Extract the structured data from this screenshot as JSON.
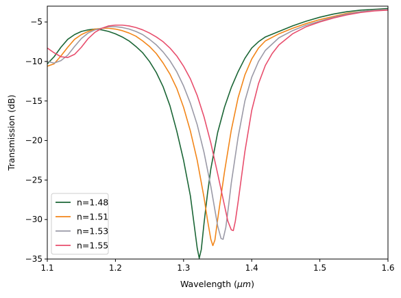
{
  "chart_data": {
    "type": "line",
    "title": "",
    "xlabel": "Wavelength (μm)",
    "xlabel_parts": {
      "prefix": "Wavelength (",
      "unit": "μm",
      "suffix": ")"
    },
    "ylabel": "Transmission (dB)",
    "xlim": [
      1.1,
      1.6
    ],
    "ylim": [
      -35,
      -3
    ],
    "xticks": [
      1.1,
      1.2,
      1.3,
      1.4,
      1.5,
      1.6
    ],
    "xtick_labels": [
      "1.1",
      "1.2",
      "1.3",
      "1.4",
      "1.5",
      "1.6"
    ],
    "yticks": [
      -35,
      -30,
      -25,
      -20,
      -15,
      -10,
      -5
    ],
    "ytick_labels": [
      "−35",
      "−30",
      "−25",
      "−20",
      "−15",
      "−10",
      "−5"
    ],
    "grid": false,
    "legend_position": "lower-left",
    "series": [
      {
        "name": "n=1.48",
        "color": "#1a6535",
        "points": [
          [
            1.1,
            -10.3
          ],
          [
            1.11,
            -9.4
          ],
          [
            1.12,
            -8.2
          ],
          [
            1.13,
            -7.2
          ],
          [
            1.14,
            -6.6
          ],
          [
            1.15,
            -6.2
          ],
          [
            1.16,
            -6.0
          ],
          [
            1.17,
            -5.9
          ],
          [
            1.18,
            -6.0
          ],
          [
            1.19,
            -6.2
          ],
          [
            1.2,
            -6.5
          ],
          [
            1.21,
            -6.9
          ],
          [
            1.22,
            -7.4
          ],
          [
            1.23,
            -8.1
          ],
          [
            1.24,
            -8.9
          ],
          [
            1.25,
            -10.0
          ],
          [
            1.26,
            -11.4
          ],
          [
            1.27,
            -13.2
          ],
          [
            1.28,
            -15.6
          ],
          [
            1.29,
            -18.8
          ],
          [
            1.3,
            -22.5
          ],
          [
            1.31,
            -27.0
          ],
          [
            1.315,
            -30.3
          ],
          [
            1.32,
            -33.6
          ],
          [
            1.323,
            -34.9
          ],
          [
            1.326,
            -33.8
          ],
          [
            1.33,
            -30.5
          ],
          [
            1.335,
            -26.8
          ],
          [
            1.34,
            -23.6
          ],
          [
            1.35,
            -19.0
          ],
          [
            1.36,
            -15.8
          ],
          [
            1.37,
            -13.3
          ],
          [
            1.38,
            -11.3
          ],
          [
            1.39,
            -9.6
          ],
          [
            1.4,
            -8.3
          ],
          [
            1.41,
            -7.5
          ],
          [
            1.42,
            -6.9
          ],
          [
            1.44,
            -6.2
          ],
          [
            1.46,
            -5.5
          ],
          [
            1.48,
            -4.9
          ],
          [
            1.5,
            -4.4
          ],
          [
            1.52,
            -4.0
          ],
          [
            1.54,
            -3.7
          ],
          [
            1.56,
            -3.5
          ],
          [
            1.58,
            -3.4
          ],
          [
            1.6,
            -3.3
          ]
        ]
      },
      {
        "name": "n=1.51",
        "color": "#f28518",
        "points": [
          [
            1.1,
            -10.6
          ],
          [
            1.11,
            -10.3
          ],
          [
            1.12,
            -9.3
          ],
          [
            1.13,
            -8.2
          ],
          [
            1.14,
            -7.2
          ],
          [
            1.15,
            -6.6
          ],
          [
            1.16,
            -6.2
          ],
          [
            1.17,
            -5.9
          ],
          [
            1.18,
            -5.8
          ],
          [
            1.19,
            -5.8
          ],
          [
            1.2,
            -5.9
          ],
          [
            1.21,
            -6.1
          ],
          [
            1.22,
            -6.4
          ],
          [
            1.23,
            -6.8
          ],
          [
            1.24,
            -7.4
          ],
          [
            1.25,
            -8.1
          ],
          [
            1.26,
            -9.0
          ],
          [
            1.27,
            -10.2
          ],
          [
            1.28,
            -11.6
          ],
          [
            1.29,
            -13.4
          ],
          [
            1.3,
            -15.8
          ],
          [
            1.31,
            -18.8
          ],
          [
            1.32,
            -22.5
          ],
          [
            1.33,
            -27.2
          ],
          [
            1.335,
            -30.0
          ],
          [
            1.34,
            -32.5
          ],
          [
            1.343,
            -33.3
          ],
          [
            1.346,
            -32.6
          ],
          [
            1.35,
            -30.0
          ],
          [
            1.355,
            -27.0
          ],
          [
            1.36,
            -24.0
          ],
          [
            1.37,
            -18.7
          ],
          [
            1.38,
            -14.6
          ],
          [
            1.39,
            -11.7
          ],
          [
            1.4,
            -9.7
          ],
          [
            1.41,
            -8.3
          ],
          [
            1.42,
            -7.4
          ],
          [
            1.44,
            -6.5
          ],
          [
            1.46,
            -5.8
          ],
          [
            1.48,
            -5.2
          ],
          [
            1.5,
            -4.7
          ],
          [
            1.52,
            -4.3
          ],
          [
            1.54,
            -3.9
          ],
          [
            1.56,
            -3.7
          ],
          [
            1.58,
            -3.5
          ],
          [
            1.6,
            -3.4
          ]
        ]
      },
      {
        "name": "n=1.53",
        "color": "#9a99a6",
        "points": [
          [
            1.1,
            -10.0
          ],
          [
            1.11,
            -10.2
          ],
          [
            1.12,
            -9.9
          ],
          [
            1.13,
            -9.2
          ],
          [
            1.14,
            -8.1
          ],
          [
            1.15,
            -7.1
          ],
          [
            1.16,
            -6.4
          ],
          [
            1.17,
            -6.0
          ],
          [
            1.18,
            -5.8
          ],
          [
            1.19,
            -5.6
          ],
          [
            1.2,
            -5.6
          ],
          [
            1.21,
            -5.7
          ],
          [
            1.22,
            -5.9
          ],
          [
            1.23,
            -6.2
          ],
          [
            1.24,
            -6.6
          ],
          [
            1.25,
            -7.2
          ],
          [
            1.26,
            -7.9
          ],
          [
            1.27,
            -8.8
          ],
          [
            1.28,
            -9.9
          ],
          [
            1.29,
            -11.3
          ],
          [
            1.3,
            -13.1
          ],
          [
            1.31,
            -15.3
          ],
          [
            1.32,
            -18.0
          ],
          [
            1.33,
            -21.5
          ],
          [
            1.34,
            -25.8
          ],
          [
            1.345,
            -28.3
          ],
          [
            1.35,
            -30.8
          ],
          [
            1.355,
            -32.4
          ],
          [
            1.358,
            -32.5
          ],
          [
            1.362,
            -31.0
          ],
          [
            1.366,
            -28.3
          ],
          [
            1.37,
            -25.4
          ],
          [
            1.38,
            -19.6
          ],
          [
            1.39,
            -15.0
          ],
          [
            1.4,
            -12.0
          ],
          [
            1.41,
            -10.0
          ],
          [
            1.42,
            -8.6
          ],
          [
            1.44,
            -7.0
          ],
          [
            1.46,
            -6.1
          ],
          [
            1.48,
            -5.4
          ],
          [
            1.5,
            -4.9
          ],
          [
            1.52,
            -4.4
          ],
          [
            1.54,
            -4.0
          ],
          [
            1.56,
            -3.7
          ],
          [
            1.58,
            -3.5
          ],
          [
            1.6,
            -3.4
          ]
        ]
      },
      {
        "name": "n=1.55",
        "color": "#e84d6c",
        "points": [
          [
            1.1,
            -8.3
          ],
          [
            1.11,
            -8.9
          ],
          [
            1.12,
            -9.4
          ],
          [
            1.13,
            -9.5
          ],
          [
            1.14,
            -9.1
          ],
          [
            1.15,
            -8.2
          ],
          [
            1.16,
            -7.1
          ],
          [
            1.17,
            -6.3
          ],
          [
            1.18,
            -5.8
          ],
          [
            1.19,
            -5.5
          ],
          [
            1.2,
            -5.4
          ],
          [
            1.21,
            -5.4
          ],
          [
            1.22,
            -5.5
          ],
          [
            1.23,
            -5.7
          ],
          [
            1.24,
            -6.0
          ],
          [
            1.25,
            -6.4
          ],
          [
            1.26,
            -6.9
          ],
          [
            1.27,
            -7.5
          ],
          [
            1.28,
            -8.3
          ],
          [
            1.29,
            -9.3
          ],
          [
            1.3,
            -10.6
          ],
          [
            1.31,
            -12.2
          ],
          [
            1.32,
            -14.3
          ],
          [
            1.33,
            -17.0
          ],
          [
            1.34,
            -20.3
          ],
          [
            1.35,
            -24.2
          ],
          [
            1.36,
            -28.2
          ],
          [
            1.365,
            -30.2
          ],
          [
            1.37,
            -31.3
          ],
          [
            1.373,
            -31.4
          ],
          [
            1.376,
            -30.2
          ],
          [
            1.38,
            -27.8
          ],
          [
            1.385,
            -24.6
          ],
          [
            1.39,
            -21.4
          ],
          [
            1.4,
            -16.2
          ],
          [
            1.41,
            -12.8
          ],
          [
            1.42,
            -10.5
          ],
          [
            1.43,
            -9.0
          ],
          [
            1.44,
            -7.9
          ],
          [
            1.46,
            -6.5
          ],
          [
            1.48,
            -5.6
          ],
          [
            1.5,
            -5.0
          ],
          [
            1.52,
            -4.5
          ],
          [
            1.54,
            -4.1
          ],
          [
            1.56,
            -3.8
          ],
          [
            1.58,
            -3.6
          ],
          [
            1.6,
            -3.5
          ]
        ]
      }
    ]
  }
}
